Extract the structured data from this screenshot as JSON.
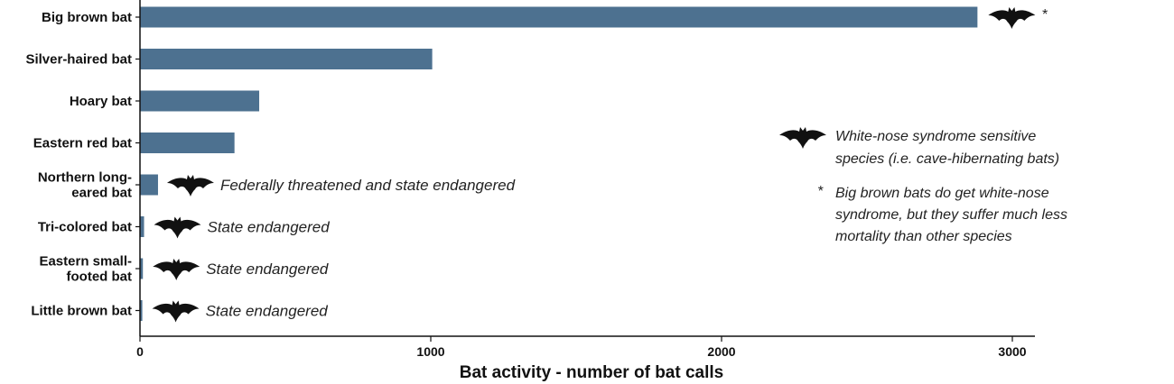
{
  "chart_data": {
    "type": "bar",
    "orientation": "horizontal",
    "categories": [
      [
        "Big brown bat"
      ],
      [
        "Silver-haired bat"
      ],
      [
        "Hoary bat"
      ],
      [
        "Eastern red bat"
      ],
      [
        "Northern long-",
        "eared bat"
      ],
      [
        "Tri-colored bat"
      ],
      [
        "Eastern small-",
        "footed bat"
      ],
      [
        "Little brown bat"
      ]
    ],
    "values": [
      2880,
      1005,
      410,
      325,
      62,
      14,
      10,
      8
    ],
    "bar_color": "#4d7190",
    "icon_color": "#111111",
    "xlabel": "Bat activity - number of bat calls",
    "xlim": [
      0,
      3070
    ],
    "xticks": [
      0,
      1000,
      2000,
      3000
    ],
    "grid": false,
    "annotations": [
      {
        "category": 0,
        "icon": "bat-icon",
        "text": "*"
      },
      {
        "category": 4,
        "icon": "bat-icon",
        "text": "Federally threatened and state endangered"
      },
      {
        "category": 5,
        "icon": "bat-icon",
        "text": "State endangered"
      },
      {
        "category": 6,
        "icon": "bat-icon",
        "text": "State endangered"
      },
      {
        "category": 7,
        "icon": "bat-icon",
        "text": "State endangered"
      }
    ],
    "legend": {
      "placement": "right",
      "entries": [
        {
          "marker": "bat-icon",
          "lines": [
            "White-nose syndrome sensitive",
            "species (i.e. cave-hibernating bats)"
          ]
        },
        {
          "marker": "*",
          "lines": [
            "Big brown bats do get white-nose",
            "syndrome, but they suffer much less",
            "mortality than other species"
          ]
        }
      ]
    }
  }
}
